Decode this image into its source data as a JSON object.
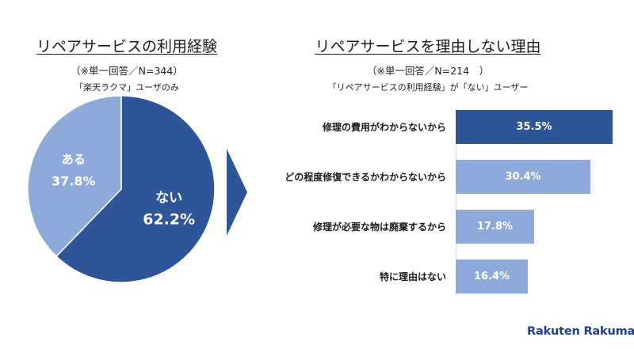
{
  "left": {
    "title": "リペアサービスの利用経験",
    "subtitle": "（※単一回答／N=344）",
    "note": "「楽天ラクマ」ユーザのみ"
  },
  "right": {
    "title": "リペアサービスを理由しない理由",
    "subtitle": "（※単一回答／N=214　）",
    "note": "「リペアサービスの利用経験」が「ない」ユーザー"
  },
  "logo": "Rakuten Rakuma",
  "colors": {
    "dark": "#2e5597",
    "light": "#8eaadb"
  },
  "chart_data": [
    {
      "type": "pie",
      "slices": [
        {
          "label": "ない",
          "value": 62.2,
          "display": "62.2%",
          "color": "#2e5597"
        },
        {
          "label": "ある",
          "value": 37.8,
          "display": "37.8%",
          "color": "#8eaadb"
        }
      ]
    },
    {
      "type": "bar",
      "orientation": "horizontal",
      "categories": [
        "修理の費用がわからないから",
        "どの程度修復できるかわからないから",
        "修理が必要な物は廃棄するから",
        "特に理由はない"
      ],
      "values": [
        35.5,
        30.4,
        17.8,
        16.4
      ],
      "value_labels": [
        "35.5%",
        "30.4%",
        "17.8%",
        "16.4%"
      ],
      "colors": [
        "#2e5597",
        "#8eaadb",
        "#8eaadb",
        "#8eaadb"
      ],
      "xlim": [
        0,
        35.5
      ]
    }
  ]
}
